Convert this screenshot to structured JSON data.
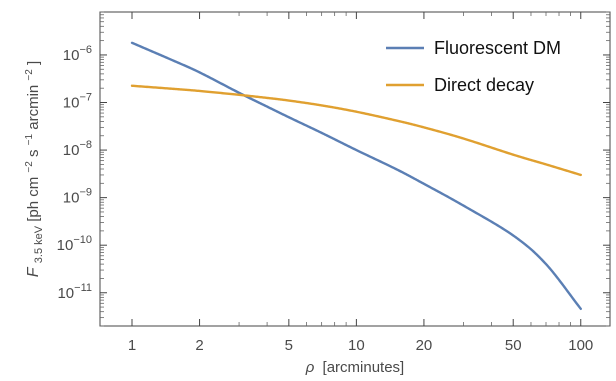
{
  "chart_data": {
    "type": "line",
    "title": "",
    "xlabel_symbol": "ρ",
    "xlabel_rest": "[arcminutes]",
    "ylabel_main": "F",
    "ylabel_sub": "3.5 keV",
    "ylabel_unit_parts": [
      " [ph cm",
      "−2",
      "s",
      "−1",
      " arcmin",
      "−2",
      "]"
    ],
    "x_scale": "log",
    "y_scale": "log",
    "xlim": [
      0.72,
      135
    ],
    "ylim": [
      2e-12,
      8e-06
    ],
    "x_ticks": [
      {
        "value": 1,
        "label": "1"
      },
      {
        "value": 2,
        "label": "2"
      },
      {
        "value": 5,
        "label": "5"
      },
      {
        "value": 10,
        "label": "10"
      },
      {
        "value": 20,
        "label": "20"
      },
      {
        "value": 50,
        "label": "50"
      },
      {
        "value": 100,
        "label": "100"
      }
    ],
    "y_ticks": [
      {
        "value": 1e-06,
        "mantissa": "10",
        "exponent": "−6"
      },
      {
        "value": 1e-07,
        "mantissa": "10",
        "exponent": "−7"
      },
      {
        "value": 1e-08,
        "mantissa": "10",
        "exponent": "−8"
      },
      {
        "value": 1e-09,
        "mantissa": "10",
        "exponent": "−9"
      },
      {
        "value": 1e-10,
        "mantissa": "10",
        "exponent": "−10"
      },
      {
        "value": 1e-11,
        "mantissa": "10",
        "exponent": "−11"
      }
    ],
    "grid": false,
    "legend_position": "top-right",
    "series": [
      {
        "name": "Fluorescent DM",
        "color": "#5b7fb4",
        "x": [
          1,
          1.5,
          2,
          3,
          4,
          5,
          7,
          10,
          15,
          20,
          30,
          50,
          70,
          100
        ],
        "y": [
          1.8e-06,
          7.9e-07,
          4.3e-07,
          1.6e-07,
          8.2e-08,
          4.9e-08,
          2.3e-08,
          1e-08,
          4e-09,
          1.95e-09,
          6.8e-10,
          1.6e-10,
          4e-11,
          4.6e-12
        ]
      },
      {
        "name": "Direct decay",
        "color": "#e0a030",
        "x": [
          1,
          1.5,
          2,
          3,
          4,
          5,
          7,
          10,
          15,
          20,
          30,
          50,
          70,
          100
        ],
        "y": [
          2.25e-07,
          1.95e-07,
          1.75e-07,
          1.45e-07,
          1.25e-07,
          1.1e-07,
          8.7e-08,
          6.4e-08,
          4.2e-08,
          3e-08,
          1.75e-08,
          8e-09,
          5e-09,
          3e-09
        ]
      }
    ]
  }
}
